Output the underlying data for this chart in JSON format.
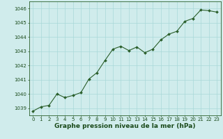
{
  "x": [
    0,
    1,
    2,
    3,
    4,
    5,
    6,
    7,
    8,
    9,
    10,
    11,
    12,
    13,
    14,
    15,
    16,
    17,
    18,
    19,
    20,
    21,
    22,
    23
  ],
  "y": [
    1038.8,
    1039.1,
    1039.2,
    1040.0,
    1039.75,
    1039.9,
    1040.1,
    1041.05,
    1041.5,
    1042.35,
    1043.15,
    1043.35,
    1043.05,
    1043.3,
    1042.9,
    1043.15,
    1043.8,
    1044.2,
    1044.4,
    1045.1,
    1045.3,
    1045.9,
    1045.85,
    1045.75
  ],
  "line_color": "#2a5e2a",
  "marker": "D",
  "marker_size": 2.0,
  "linewidth": 0.8,
  "xlabel": "Graphe pression niveau de la mer (hPa)",
  "xlabel_fontsize": 6.5,
  "xlabel_color": "#1a4a1a",
  "ylim": [
    1038.5,
    1046.5
  ],
  "xlim": [
    -0.5,
    23.5
  ],
  "yticks": [
    1039,
    1040,
    1041,
    1042,
    1043,
    1044,
    1045,
    1046
  ],
  "xticks": [
    0,
    1,
    2,
    3,
    4,
    5,
    6,
    7,
    8,
    9,
    10,
    11,
    12,
    13,
    14,
    15,
    16,
    17,
    18,
    19,
    20,
    21,
    22,
    23
  ],
  "tick_fontsize": 5.0,
  "tick_color": "#1a4a1a",
  "grid_color": "#a8d8d8",
  "bg_color": "#d0ecec",
  "border_color": "#2a5e2a"
}
